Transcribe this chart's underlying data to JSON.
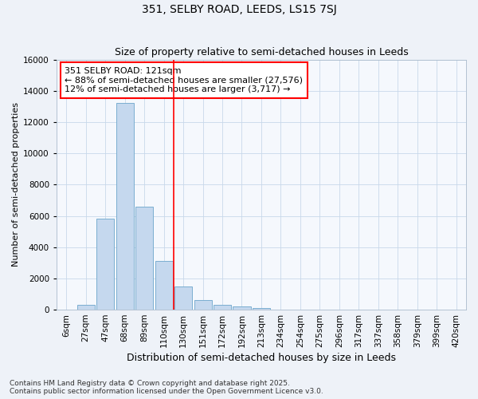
{
  "title": "351, SELBY ROAD, LEEDS, LS15 7SJ",
  "subtitle": "Size of property relative to semi-detached houses in Leeds",
  "xlabel": "Distribution of semi-detached houses by size in Leeds",
  "ylabel": "Number of semi-detached properties",
  "categories": [
    "6sqm",
    "27sqm",
    "47sqm",
    "68sqm",
    "89sqm",
    "110sqm",
    "130sqm",
    "151sqm",
    "172sqm",
    "192sqm",
    "213sqm",
    "234sqm",
    "254sqm",
    "275sqm",
    "296sqm",
    "317sqm",
    "337sqm",
    "358sqm",
    "379sqm",
    "399sqm",
    "420sqm"
  ],
  "values": [
    0,
    300,
    5800,
    13200,
    6600,
    3100,
    1500,
    600,
    300,
    200,
    100,
    0,
    0,
    0,
    0,
    0,
    0,
    0,
    0,
    0,
    0
  ],
  "bar_color": "#c5d8ee",
  "bar_edge_color": "#7aaed0",
  "vline_x_index": 5,
  "vline_color": "red",
  "annotation_line1": "351 SELBY ROAD: 121sqm",
  "annotation_line2": "← 88% of semi-detached houses are smaller (27,576)",
  "annotation_line3": "12% of semi-detached houses are larger (3,717) →",
  "annotation_box_color": "white",
  "annotation_box_edge_color": "red",
  "ylim": [
    0,
    16000
  ],
  "yticks": [
    0,
    2000,
    4000,
    6000,
    8000,
    10000,
    12000,
    14000,
    16000
  ],
  "footer_text": "Contains HM Land Registry data © Crown copyright and database right 2025.\nContains public sector information licensed under the Open Government Licence v3.0.",
  "background_color": "#eef2f8",
  "plot_background_color": "#f5f8fd",
  "title_fontsize": 10,
  "subtitle_fontsize": 9,
  "xlabel_fontsize": 9,
  "ylabel_fontsize": 8,
  "tick_fontsize": 7.5,
  "annotation_fontsize": 8,
  "footer_fontsize": 6.5
}
